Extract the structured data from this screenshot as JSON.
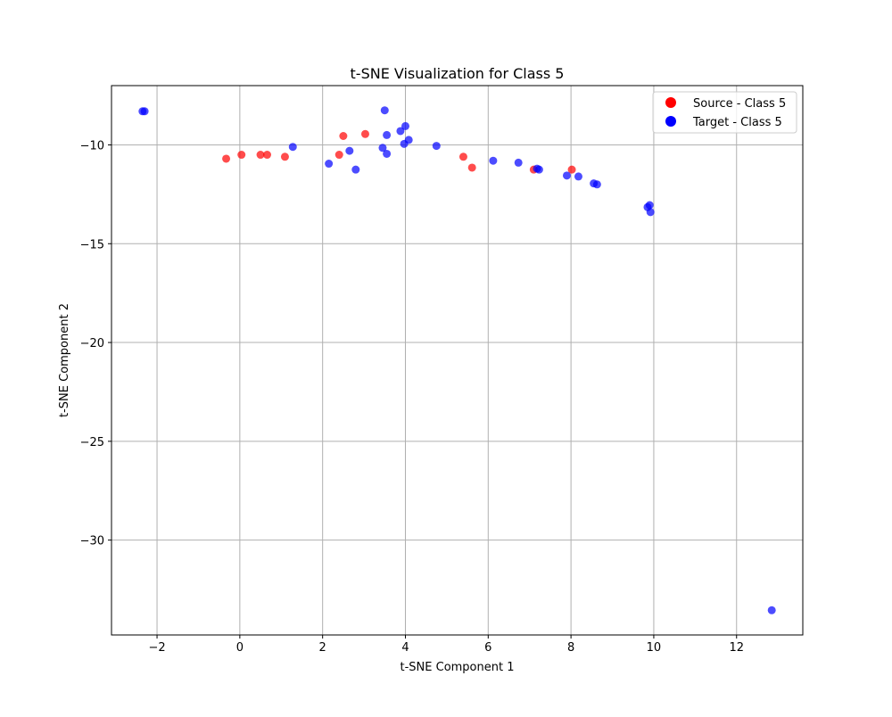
{
  "chart_data": {
    "type": "scatter",
    "title": "t-SNE Visualization for Class 5",
    "xlabel": "t-SNE Component 1",
    "ylabel": "t-SNE Component 2",
    "xlim": [
      -3.1,
      13.6
    ],
    "ylim": [
      -34.8,
      -7.0
    ],
    "xticks": [
      -2,
      0,
      2,
      4,
      6,
      8,
      10,
      12
    ],
    "xtick_labels": [
      "−2",
      "0",
      "2",
      "4",
      "6",
      "8",
      "10",
      "12"
    ],
    "yticks": [
      -30,
      -25,
      -20,
      -15,
      -10
    ],
    "ytick_labels": [
      "−30",
      "−25",
      "−20",
      "−15",
      "−10"
    ],
    "grid": true,
    "legend_position": "top-right",
    "series": [
      {
        "name": "Source - Class 5",
        "color": "#ff0000",
        "points": [
          [
            -0.33,
            -10.7
          ],
          [
            0.04,
            -10.5
          ],
          [
            0.5,
            -10.5
          ],
          [
            0.66,
            -10.5
          ],
          [
            1.09,
            -10.6
          ],
          [
            2.4,
            -10.5
          ],
          [
            2.5,
            -9.55
          ],
          [
            3.03,
            -9.45
          ],
          [
            5.4,
            -10.6
          ],
          [
            5.61,
            -11.15
          ],
          [
            7.1,
            -11.25
          ],
          [
            8.02,
            -11.25
          ]
        ]
      },
      {
        "name": "Target - Class 5",
        "color": "#0000ff",
        "points": [
          [
            -2.35,
            -8.3
          ],
          [
            -2.3,
            -8.3
          ],
          [
            1.28,
            -10.1
          ],
          [
            2.15,
            -10.95
          ],
          [
            2.65,
            -10.3
          ],
          [
            2.8,
            -11.25
          ],
          [
            3.45,
            -10.15
          ],
          [
            3.5,
            -8.25
          ],
          [
            3.55,
            -9.5
          ],
          [
            3.55,
            -10.45
          ],
          [
            3.88,
            -9.3
          ],
          [
            3.97,
            -9.95
          ],
          [
            4.0,
            -9.05
          ],
          [
            4.08,
            -9.75
          ],
          [
            4.75,
            -10.05
          ],
          [
            6.12,
            -10.8
          ],
          [
            6.73,
            -10.9
          ],
          [
            7.18,
            -11.2
          ],
          [
            7.23,
            -11.25
          ],
          [
            7.9,
            -11.55
          ],
          [
            8.18,
            -11.6
          ],
          [
            8.55,
            -11.95
          ],
          [
            8.63,
            -12.0
          ],
          [
            9.85,
            -13.15
          ],
          [
            9.9,
            -13.05
          ],
          [
            9.92,
            -13.4
          ],
          [
            12.85,
            -33.55
          ]
        ]
      }
    ]
  }
}
